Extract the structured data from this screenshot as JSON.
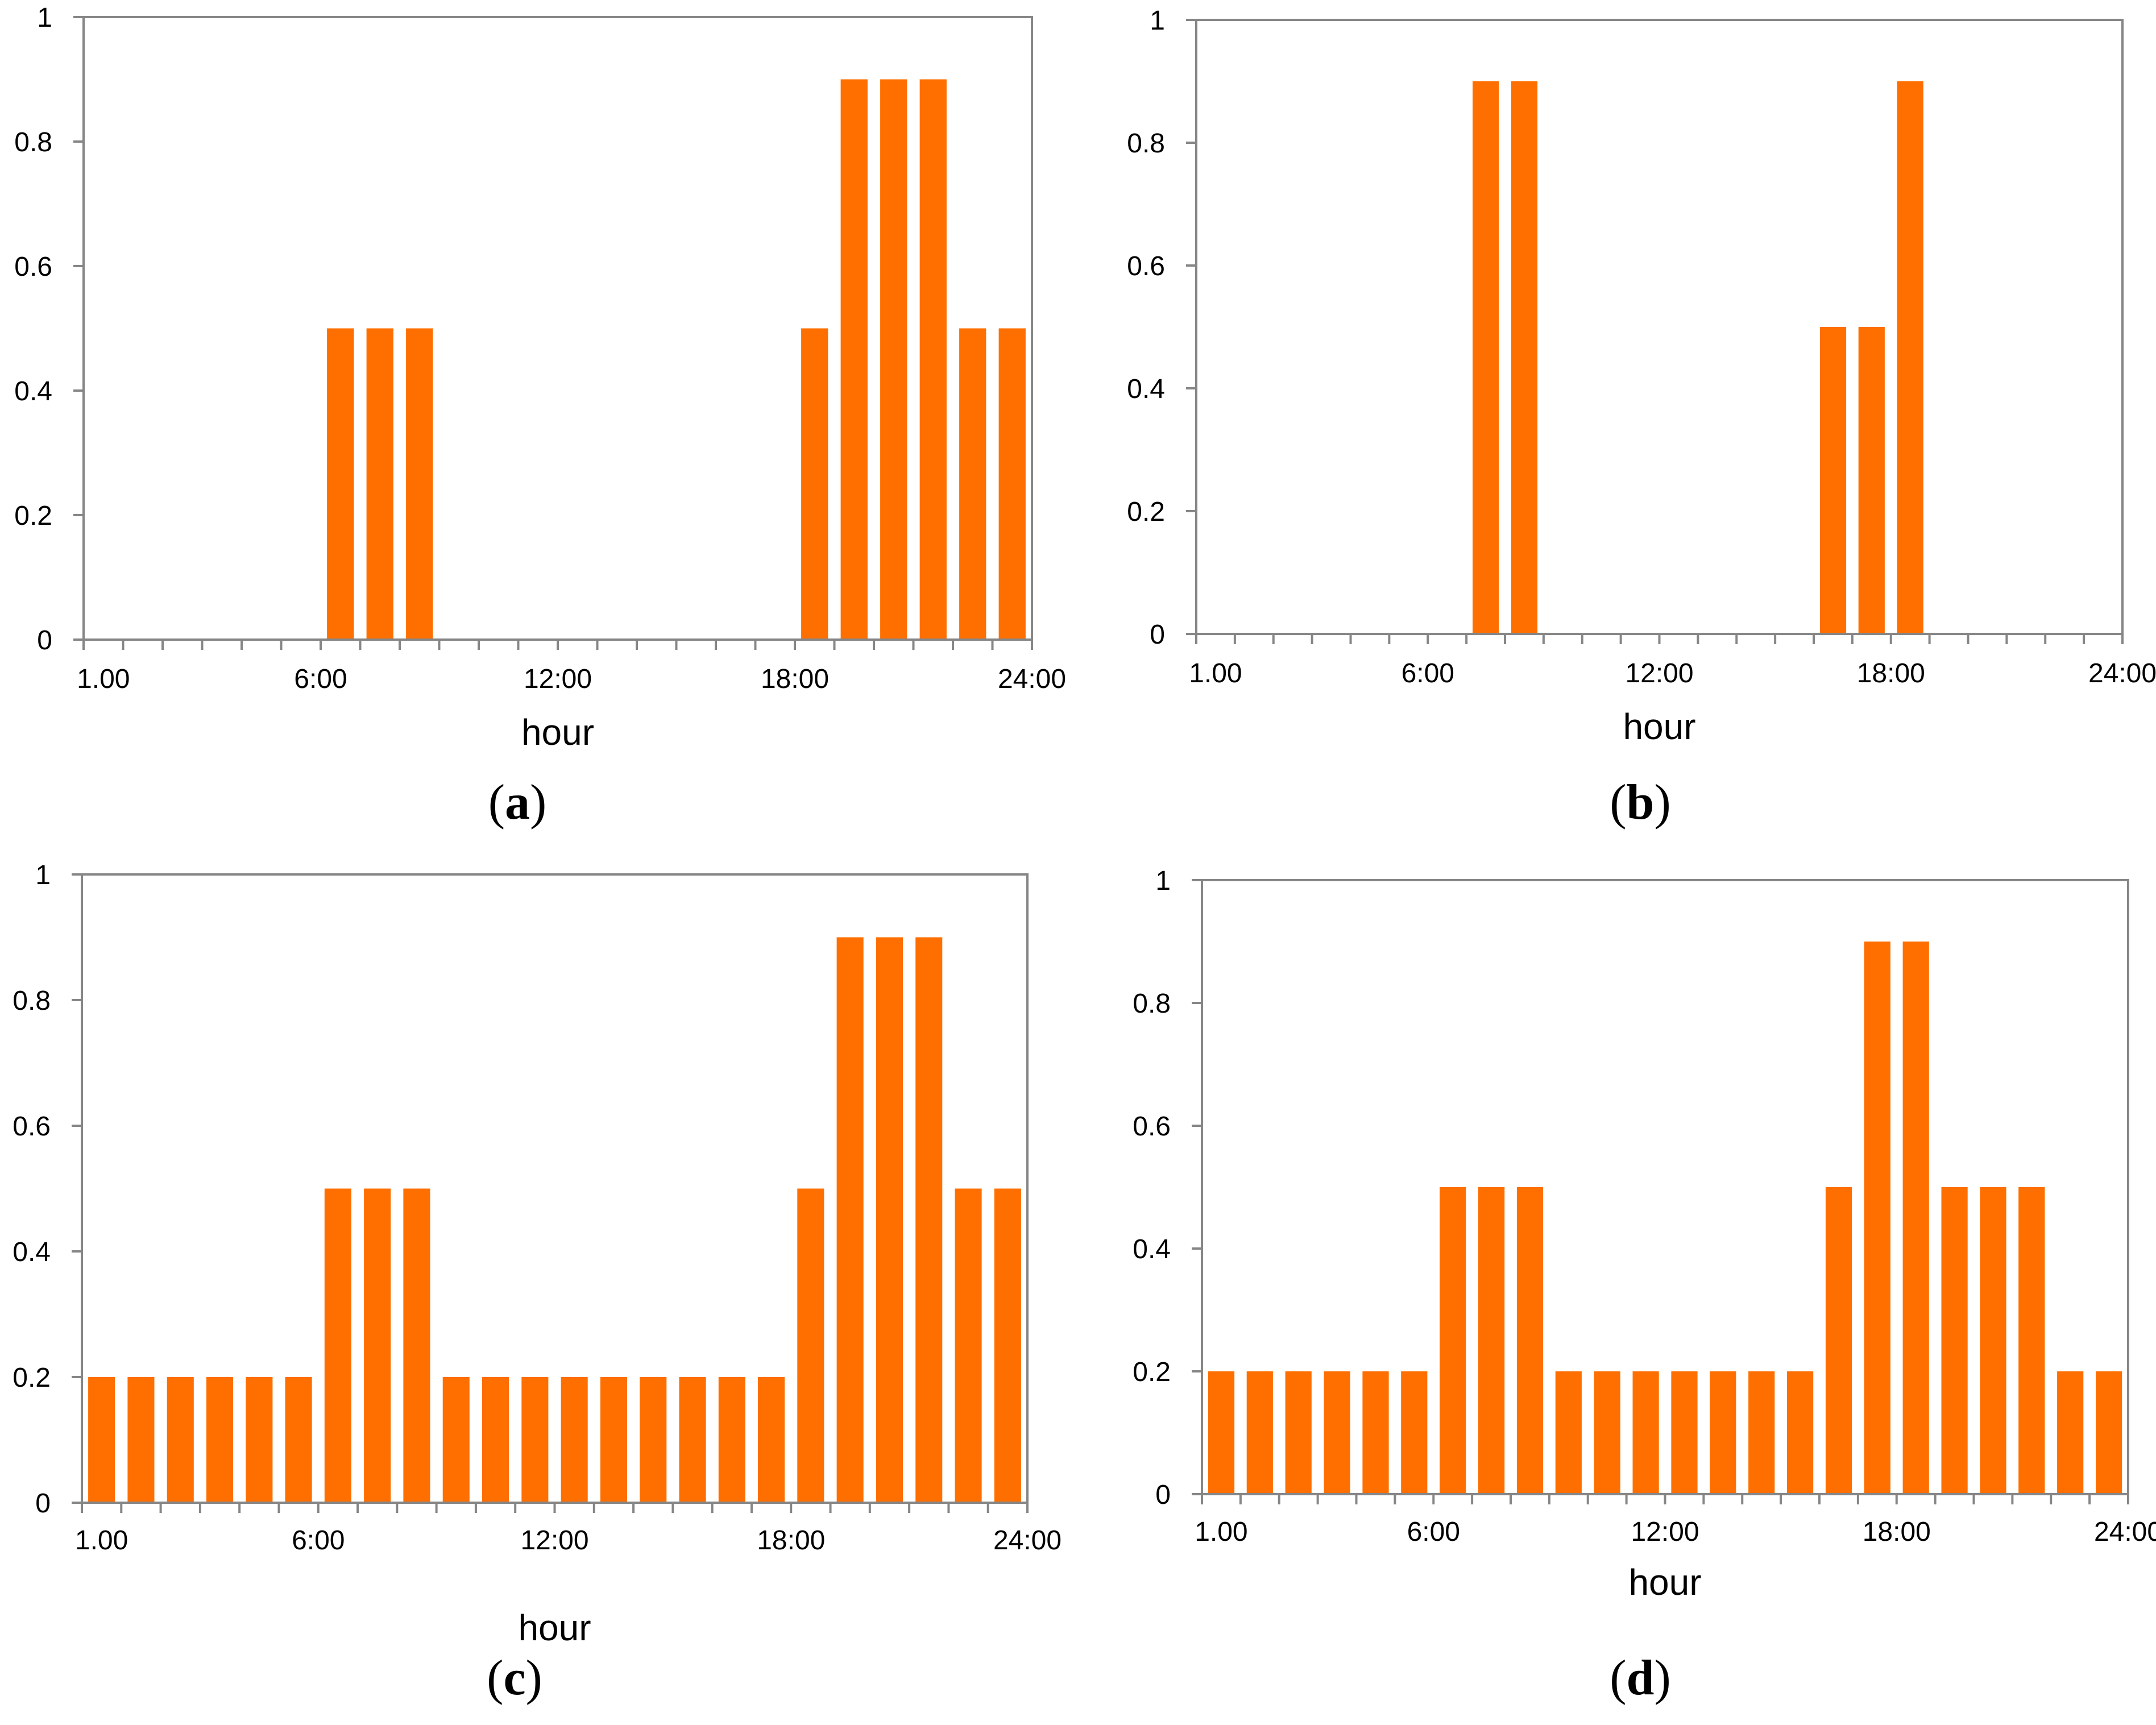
{
  "colors": {
    "bar": "#ff6f00",
    "axis": "#868686",
    "text": "#000000"
  },
  "chart_data": [
    {
      "type": "bar",
      "panel": "a",
      "xlabel": "hour",
      "ylabel": "",
      "ylim": [
        0,
        1
      ],
      "yticks": [
        "0",
        "0.2",
        "0.4",
        "0.6",
        "0.8",
        "1"
      ],
      "xtick_labels": [
        "1.00",
        "6:00",
        "12:00",
        "18:00",
        "24:00"
      ],
      "hours": [
        1,
        2,
        3,
        4,
        5,
        6,
        7,
        8,
        9,
        10,
        11,
        12,
        13,
        14,
        15,
        16,
        17,
        18,
        19,
        20,
        21,
        22,
        23,
        24
      ],
      "values": [
        0,
        0,
        0,
        0,
        0,
        0,
        0.5,
        0.5,
        0.5,
        0,
        0,
        0,
        0,
        0,
        0,
        0,
        0,
        0,
        0.5,
        0.9,
        0.9,
        0.9,
        0.5,
        0.5
      ]
    },
    {
      "type": "bar",
      "panel": "b",
      "xlabel": "hour",
      "ylabel": "",
      "ylim": [
        0,
        1
      ],
      "yticks": [
        "0",
        "0.2",
        "0.4",
        "0.6",
        "0.8",
        "1"
      ],
      "xtick_labels": [
        "1.00",
        "6:00",
        "12:00",
        "18:00",
        "24:00"
      ],
      "hours": [
        1,
        2,
        3,
        4,
        5,
        6,
        7,
        8,
        9,
        10,
        11,
        12,
        13,
        14,
        15,
        16,
        17,
        18,
        19,
        20,
        21,
        22,
        23,
        24
      ],
      "values": [
        0,
        0,
        0,
        0,
        0,
        0,
        0,
        0.9,
        0.9,
        0,
        0,
        0,
        0,
        0,
        0,
        0,
        0.5,
        0.5,
        0.9,
        0,
        0,
        0,
        0,
        0
      ]
    },
    {
      "type": "bar",
      "panel": "c",
      "xlabel": "hour",
      "ylabel": "",
      "ylim": [
        0,
        1
      ],
      "yticks": [
        "0",
        "0.2",
        "0.4",
        "0.6",
        "0.8",
        "1"
      ],
      "xtick_labels": [
        "1.00",
        "6:00",
        "12:00",
        "18:00",
        "24:00"
      ],
      "hours": [
        1,
        2,
        3,
        4,
        5,
        6,
        7,
        8,
        9,
        10,
        11,
        12,
        13,
        14,
        15,
        16,
        17,
        18,
        19,
        20,
        21,
        22,
        23,
        24
      ],
      "values": [
        0.2,
        0.2,
        0.2,
        0.2,
        0.2,
        0.2,
        0.5,
        0.5,
        0.5,
        0.2,
        0.2,
        0.2,
        0.2,
        0.2,
        0.2,
        0.2,
        0.2,
        0.2,
        0.5,
        0.9,
        0.9,
        0.9,
        0.5,
        0.5
      ]
    },
    {
      "type": "bar",
      "panel": "d",
      "xlabel": "hour",
      "ylabel": "",
      "ylim": [
        0,
        1
      ],
      "yticks": [
        "0",
        "0.2",
        "0.4",
        "0.6",
        "0.8",
        "1"
      ],
      "xtick_labels": [
        "1.00",
        "6:00",
        "12:00",
        "18:00",
        "24:00"
      ],
      "hours": [
        1,
        2,
        3,
        4,
        5,
        6,
        7,
        8,
        9,
        10,
        11,
        12,
        13,
        14,
        15,
        16,
        17,
        18,
        19,
        20,
        21,
        22,
        23,
        24
      ],
      "values": [
        0.2,
        0.2,
        0.2,
        0.2,
        0.2,
        0.2,
        0.5,
        0.5,
        0.5,
        0.2,
        0.2,
        0.2,
        0.2,
        0.2,
        0.2,
        0.2,
        0.5,
        0.9,
        0.9,
        0.5,
        0.5,
        0.5,
        0.2,
        0.2
      ]
    }
  ]
}
